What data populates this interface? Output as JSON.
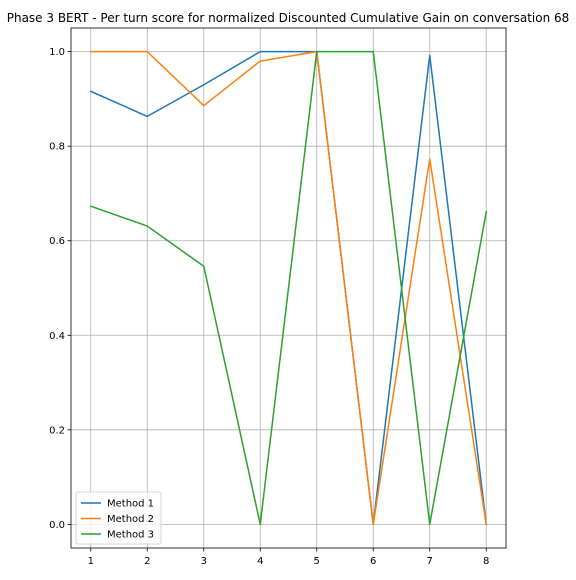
{
  "chart_data": {
    "type": "line",
    "title": "Phase 3 BERT - Per turn score for normalized Discounted Cumulative Gain on conversation 68",
    "xlabel": "",
    "ylabel": "",
    "x": [
      1,
      2,
      3,
      4,
      5,
      6,
      7,
      8
    ],
    "xticks": [
      1,
      2,
      3,
      4,
      5,
      6,
      7,
      8
    ],
    "yticks": [
      0.0,
      0.2,
      0.4,
      0.6,
      0.8,
      1.0
    ],
    "ytick_labels": [
      "0.0",
      "0.2",
      "0.4",
      "0.6",
      "0.8",
      "1.0"
    ],
    "xlim": [
      0.65,
      8.35
    ],
    "ylim": [
      -0.05,
      1.05
    ],
    "grid": true,
    "legend_position": "lower-left",
    "series": [
      {
        "name": "Method 1",
        "color": "#1f77b4",
        "values": [
          0.916,
          0.863,
          0.93,
          1.0,
          1.0,
          0.0,
          0.992,
          0.0
        ]
      },
      {
        "name": "Method 2",
        "color": "#ff7f0e",
        "values": [
          1.0,
          1.0,
          0.886,
          0.98,
          1.0,
          0.0,
          0.773,
          0.0
        ]
      },
      {
        "name": "Method 3",
        "color": "#2ca02c",
        "values": [
          0.673,
          0.631,
          0.546,
          0.0,
          1.0,
          1.0,
          0.0,
          0.661
        ]
      }
    ]
  }
}
